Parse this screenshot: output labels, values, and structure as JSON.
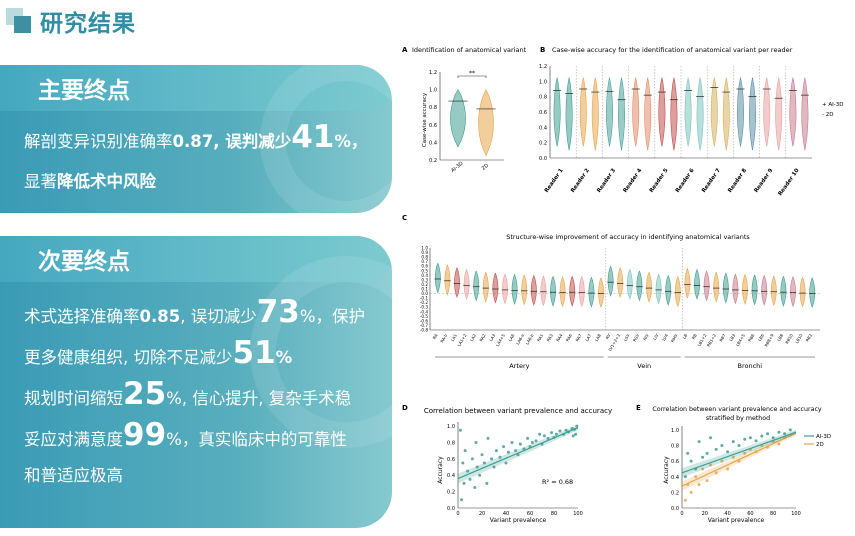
{
  "page_title": "研究结果",
  "primary": {
    "heading": "主要终点",
    "line1_prefix": "解剖变异识别准确率",
    "line1_value": "0.87",
    "line1_mid": ", 误判减少",
    "line1_big": "41",
    "line1_suffix": "%，",
    "line2_prefix": "显著",
    "line2_bold": "降低术中风险"
  },
  "secondary": {
    "heading": "次要终点",
    "s1_prefix": "术式选择准确率",
    "s1_value": "0.85",
    "s1_mid": ", 误切减少",
    "s1_big": "73",
    "s1_suffix": "%，保护",
    "s2_prefix": "更多健康组织, 切除不足减少",
    "s2_big": "51",
    "s2_suffix": "%",
    "s3_prefix": "规划时间缩短",
    "s3_big": "25",
    "s3_suffix": "%, 信心提升, 复杂手术稳",
    "s4_prefix": "妥应对满意度",
    "s4_big": "99",
    "s4_suffix": "%，真实临床中的可靠性",
    "s5": "和普适应极高"
  },
  "colors": {
    "teal": "#3f9e92",
    "orange": "#e7a64a",
    "reader_palette": [
      "#3f9e92",
      "#e7a64a",
      "#4aa39a",
      "#e38d6a",
      "#c0504d",
      "#7ec4c0",
      "#d6b15c",
      "#5b8fa8",
      "#e9a0a0",
      "#c97b8e"
    ]
  },
  "chart_data": [
    {
      "panel": "A",
      "type": "violin",
      "title": "Identification of anatomical variant",
      "ylabel": "Case-wise accuracy",
      "categories": [
        "AI-3D",
        "2D"
      ],
      "medians": [
        0.87,
        0.78
      ],
      "ranges": [
        [
          0.35,
          1.0
        ],
        [
          0.25,
          1.0
        ]
      ],
      "yticks": [
        "0.2",
        "0.4",
        "0.6",
        "0.8",
        "1.0",
        "1.2"
      ],
      "ylim": [
        0.2,
        1.2
      ],
      "annotation": "**"
    },
    {
      "panel": "B",
      "type": "violin",
      "title": "Case-wise accuracy for the identification of anatomical variant per reader",
      "categories": [
        "Reader 1",
        "Reader 2",
        "Reader 3",
        "Reader 4",
        "Reader 5",
        "Reader 6",
        "Reader 7",
        "Reader 8",
        "Reader 9",
        "Reader 10"
      ],
      "series": [
        {
          "name": "AI-3D",
          "medians": [
            0.88,
            0.9,
            0.87,
            0.9,
            0.86,
            0.88,
            0.92,
            0.9,
            0.9,
            0.88
          ]
        },
        {
          "name": "2D",
          "medians": [
            0.84,
            0.86,
            0.76,
            0.82,
            0.76,
            0.8,
            0.86,
            0.8,
            0.78,
            0.82
          ]
        }
      ],
      "yticks": [
        "0.0",
        "0.2",
        "0.4",
        "0.6",
        "0.8",
        "1.0",
        "1.2"
      ],
      "ylim": [
        0.0,
        1.2
      ],
      "legend": [
        "AI-3D",
        "2D"
      ],
      "legend_position": "right"
    },
    {
      "panel": "C",
      "type": "violin",
      "title": "Structure-wise improvement of accuracy in identifying anatomical variants",
      "groups": [
        {
          "name": "Artery",
          "categories": [
            "RA",
            "RA-b",
            "LA1",
            "LA1+2",
            "LA2",
            "RA2",
            "LA3",
            "LA4+5",
            "LA6",
            "LA6-a",
            "LA6-b",
            "RA1",
            "RA3",
            "RA4",
            "RA6",
            "RA7",
            "LA7",
            "LA8"
          ],
          "values": [
            0.32,
            0.28,
            0.22,
            0.18,
            0.15,
            0.12,
            0.1,
            0.08,
            0.07,
            0.06,
            0.05,
            0.04,
            0.03,
            0.02,
            0.03,
            0.02,
            0.01,
            0.0
          ]
        },
        {
          "name": "Vein",
          "categories": [
            "RV",
            "LV1+2+3",
            "LSV",
            "RSV",
            "RIV",
            "LIV",
            "LV4",
            "RMV"
          ],
          "values": [
            0.25,
            0.22,
            0.18,
            0.15,
            0.12,
            0.08,
            0.05,
            0.02
          ]
        },
        {
          "name": "Bronchi",
          "categories": [
            "LB",
            "RB",
            "LB1+2",
            "RB1+2",
            "RB7",
            "LB3",
            "LB4+5",
            "RB6",
            "LB6",
            "RB8+9",
            "LB8",
            "RB10",
            "LB10",
            "RB3"
          ],
          "values": [
            0.2,
            0.18,
            0.15,
            0.12,
            0.1,
            0.08,
            0.07,
            0.06,
            0.05,
            0.04,
            0.03,
            0.02,
            0.01,
            0.0
          ]
        }
      ],
      "yticks": [
        "-0.8",
        "-0.7",
        "-0.6",
        "-0.5",
        "-0.4",
        "-0.3",
        "-0.2",
        "-0.1",
        "0.0",
        "0.1",
        "0.2",
        "0.3",
        "0.4",
        "0.5",
        "0.6",
        "0.7",
        "0.8",
        "0.9",
        "1.0"
      ],
      "ylim": [
        -0.8,
        1.0
      ]
    },
    {
      "panel": "D",
      "type": "scatter",
      "title": "Correlation between variant prevalence and accuracy",
      "xlabel": "Variant prevalence",
      "ylabel": "Accuracy",
      "xticks": [
        "0",
        "20",
        "40",
        "60",
        "80",
        "100"
      ],
      "yticks": [
        "0.0",
        "0.2",
        "0.4",
        "0.6",
        "0.8",
        "1.0"
      ],
      "xlim": [
        0,
        100
      ],
      "ylim": [
        0,
        1.05
      ],
      "fit": {
        "intercept": 0.36,
        "slope": 0.0062
      },
      "annotation": "R² = 0.68",
      "points": [
        [
          2,
          0.95
        ],
        [
          3,
          0.1
        ],
        [
          4,
          0.55
        ],
        [
          5,
          0.3
        ],
        [
          6,
          0.7
        ],
        [
          8,
          0.45
        ],
        [
          10,
          0.35
        ],
        [
          12,
          0.6
        ],
        [
          14,
          0.25
        ],
        [
          15,
          0.8
        ],
        [
          16,
          0.5
        ],
        [
          18,
          0.4
        ],
        [
          20,
          0.65
        ],
        [
          22,
          0.55
        ],
        [
          24,
          0.3
        ],
        [
          25,
          0.85
        ],
        [
          28,
          0.6
        ],
        [
          30,
          0.5
        ],
        [
          32,
          0.7
        ],
        [
          35,
          0.62
        ],
        [
          38,
          0.75
        ],
        [
          40,
          0.55
        ],
        [
          42,
          0.68
        ],
        [
          45,
          0.8
        ],
        [
          48,
          0.7
        ],
        [
          50,
          0.65
        ],
        [
          52,
          0.78
        ],
        [
          55,
          0.72
        ],
        [
          58,
          0.85
        ],
        [
          60,
          0.75
        ],
        [
          62,
          0.8
        ],
        [
          65,
          0.82
        ],
        [
          68,
          0.9
        ],
        [
          70,
          0.78
        ],
        [
          72,
          0.88
        ],
        [
          75,
          0.85
        ],
        [
          78,
          0.92
        ],
        [
          80,
          0.86
        ],
        [
          82,
          0.9
        ],
        [
          85,
          0.94
        ],
        [
          88,
          0.9
        ],
        [
          90,
          0.95
        ],
        [
          92,
          0.93
        ],
        [
          95,
          0.97
        ],
        [
          97,
          0.96
        ],
        [
          99,
          1.0
        ],
        [
          98,
          0.9
        ],
        [
          96,
          0.88
        ]
      ]
    },
    {
      "panel": "E",
      "type": "scatter",
      "title": "Correlation between variant prevalence and accuracy stratified by method",
      "xlabel": "Variant prevalence",
      "ylabel": "Accuracy",
      "xticks": [
        "0",
        "20",
        "40",
        "60",
        "80",
        "100"
      ],
      "yticks": [
        "0.0",
        "0.2",
        "0.4",
        "0.6",
        "0.8",
        "1.0"
      ],
      "xlim": [
        0,
        100
      ],
      "ylim": [
        0,
        1.05
      ],
      "legend": [
        "AI-3D",
        "2D"
      ],
      "legend_position": "top-right",
      "series": [
        {
          "name": "AI-3D",
          "fit": {
            "intercept": 0.45,
            "slope": 0.0052
          },
          "points": [
            [
              3,
              0.4
            ],
            [
              5,
              0.7
            ],
            [
              8,
              0.6
            ],
            [
              12,
              0.5
            ],
            [
              15,
              0.85
            ],
            [
              18,
              0.65
            ],
            [
              22,
              0.7
            ],
            [
              25,
              0.9
            ],
            [
              30,
              0.75
            ],
            [
              35,
              0.8
            ],
            [
              40,
              0.72
            ],
            [
              45,
              0.85
            ],
            [
              50,
              0.8
            ],
            [
              55,
              0.88
            ],
            [
              60,
              0.9
            ],
            [
              65,
              0.86
            ],
            [
              70,
              0.92
            ],
            [
              75,
              0.95
            ],
            [
              80,
              0.9
            ],
            [
              85,
              0.97
            ],
            [
              90,
              0.95
            ],
            [
              95,
              1.0
            ]
          ]
        },
        {
          "name": "2D",
          "fit": {
            "intercept": 0.28,
            "slope": 0.0068
          },
          "points": [
            [
              3,
              0.1
            ],
            [
              5,
              0.3
            ],
            [
              8,
              0.2
            ],
            [
              12,
              0.4
            ],
            [
              15,
              0.3
            ],
            [
              18,
              0.5
            ],
            [
              22,
              0.35
            ],
            [
              25,
              0.55
            ],
            [
              30,
              0.45
            ],
            [
              35,
              0.6
            ],
            [
              40,
              0.5
            ],
            [
              45,
              0.65
            ],
            [
              50,
              0.6
            ],
            [
              55,
              0.7
            ],
            [
              60,
              0.75
            ],
            [
              65,
              0.72
            ],
            [
              70,
              0.8
            ],
            [
              75,
              0.78
            ],
            [
              80,
              0.85
            ],
            [
              85,
              0.82
            ],
            [
              90,
              0.9
            ],
            [
              95,
              0.93
            ]
          ]
        }
      ]
    }
  ]
}
